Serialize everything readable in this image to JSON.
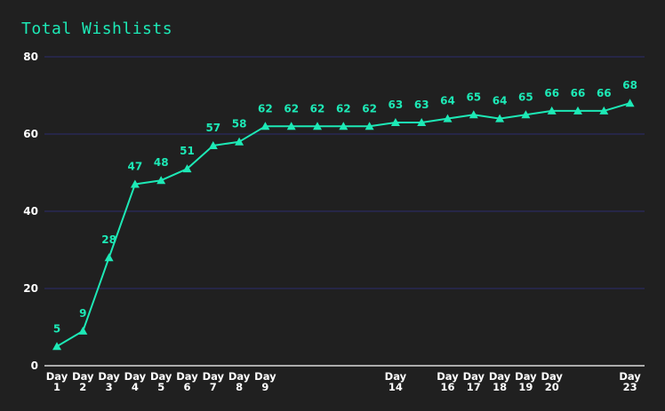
{
  "chart_data": {
    "type": "line",
    "title": "Total Wishlists",
    "xlabel": "",
    "ylabel": "",
    "ylim": [
      0,
      80
    ],
    "yticks": [
      0,
      20,
      40,
      60,
      80
    ],
    "grid": true,
    "legend": "none",
    "colors": {
      "background": "#202020",
      "line": "#1de9b6",
      "grid": "#2b2b6e",
      "axis": "#ffffff",
      "text": "#ffffff"
    },
    "marker": "triangle",
    "x": [
      "Day 1",
      "Day 2",
      "Day 3",
      "Day 4",
      "Day 5",
      "Day 6",
      "Day 7",
      "Day 8",
      "Day 9",
      "Day 10",
      "Day 11",
      "Day 12",
      "Day 13",
      "Day 14",
      "Day 15",
      "Day 16",
      "Day 17",
      "Day 18",
      "Day 19",
      "Day 20",
      "Day 21",
      "Day 22",
      "Day 23"
    ],
    "x_tick_labels_shown": [
      "Day 1",
      "Day 2",
      "Day 3",
      "Day 4",
      "Day 5",
      "Day 6",
      "Day 7",
      "Day 8",
      "Day 9",
      "Day 14",
      "Day 16",
      "Day 17",
      "Day 18",
      "Day 19",
      "Day 20",
      "Day 23"
    ],
    "series": [
      {
        "values": [
          5,
          9,
          28,
          47,
          48,
          51,
          57,
          58,
          62,
          62,
          62,
          62,
          62,
          63,
          63,
          64,
          65,
          64,
          65,
          66,
          66,
          66,
          68
        ]
      }
    ]
  }
}
